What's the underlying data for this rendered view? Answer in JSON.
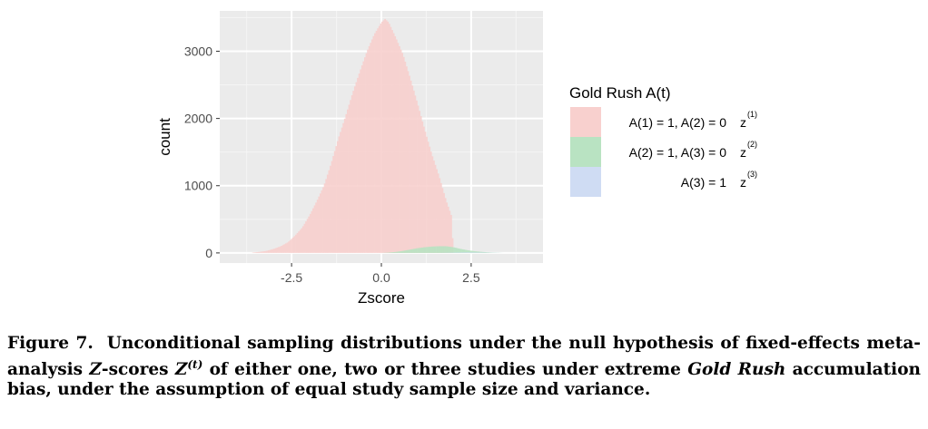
{
  "chart_data": {
    "type": "histogram",
    "title": "",
    "xlabel": "Zscore",
    "ylabel": "count",
    "xlim": [
      -4.5,
      4.5
    ],
    "ylim": [
      -150,
      3600
    ],
    "x_ticks": [
      -2.5,
      0.0,
      2.5
    ],
    "x_tick_labels": [
      "-2.5",
      "0.0",
      "2.5"
    ],
    "y_ticks": [
      0,
      1000,
      2000,
      3000
    ],
    "y_tick_labels": [
      "0",
      "1000",
      "2000",
      "3000"
    ],
    "grid": true,
    "legend": {
      "title": "Gold Rush A(t)",
      "placement": "right",
      "entries": [
        {
          "label": "A(1) = 1, A(2) = 0",
          "sup_base": "z",
          "sup": "(1)",
          "color": "#f8d0ce"
        },
        {
          "label": "A(2) = 1, A(3) = 0",
          "sup_base": "z",
          "sup": "(2)",
          "color": "#b9e3c2"
        },
        {
          "label": "A(3) = 1",
          "sup_base": "z",
          "sup": "(3)",
          "color": "#cfdcf3"
        }
      ]
    },
    "series": [
      {
        "name": "A(1) = 1, A(2) = 0",
        "color": "#f8d0ce",
        "points": [
          [
            -3.6,
            5
          ],
          [
            -3.4,
            15
          ],
          [
            -3.2,
            30
          ],
          [
            -3.0,
            60
          ],
          [
            -2.8,
            100
          ],
          [
            -2.6,
            160
          ],
          [
            -2.4,
            260
          ],
          [
            -2.2,
            380
          ],
          [
            -2.0,
            560
          ],
          [
            -1.8,
            770
          ],
          [
            -1.6,
            1000
          ],
          [
            -1.4,
            1330
          ],
          [
            -1.2,
            1700
          ],
          [
            -1.0,
            2030
          ],
          [
            -0.8,
            2380
          ],
          [
            -0.6,
            2700
          ],
          [
            -0.4,
            3000
          ],
          [
            -0.2,
            3250
          ],
          [
            0.0,
            3430
          ],
          [
            0.1,
            3480
          ],
          [
            0.2,
            3430
          ],
          [
            0.4,
            3200
          ],
          [
            0.6,
            2950
          ],
          [
            0.8,
            2600
          ],
          [
            1.0,
            2230
          ],
          [
            1.2,
            1840
          ],
          [
            1.4,
            1470
          ],
          [
            1.6,
            1150
          ],
          [
            1.8,
            780
          ],
          [
            1.95,
            550
          ],
          [
            2.0,
            0
          ]
        ]
      },
      {
        "name": "A(2) = 1, A(3) = 0",
        "color": "#b9e3c2",
        "points": [
          [
            0.0,
            0
          ],
          [
            0.2,
            5
          ],
          [
            0.4,
            15
          ],
          [
            0.6,
            30
          ],
          [
            0.8,
            50
          ],
          [
            1.0,
            70
          ],
          [
            1.2,
            85
          ],
          [
            1.4,
            95
          ],
          [
            1.6,
            100
          ],
          [
            1.8,
            100
          ],
          [
            2.0,
            85
          ],
          [
            2.2,
            60
          ],
          [
            2.4,
            40
          ],
          [
            2.6,
            25
          ],
          [
            2.8,
            15
          ],
          [
            3.0,
            8
          ],
          [
            3.2,
            3
          ],
          [
            3.4,
            0
          ]
        ]
      },
      {
        "name": "A(3) = 1",
        "color": "#cfdcf3",
        "points": [
          [
            1.6,
            0
          ],
          [
            2.0,
            4
          ],
          [
            2.4,
            8
          ],
          [
            2.8,
            5
          ],
          [
            3.2,
            2
          ],
          [
            3.4,
            0
          ]
        ]
      }
    ]
  },
  "caption": {
    "lead": "Figure 7.",
    "text_1": "Unconditional sampling distributions under the null hypothesis of fixed-effects meta- analysis",
    "z_italic": "Z",
    "text_2": "-scores",
    "Z_sym": "Z",
    "Z_sup": "(t)",
    "text_3": "of either one, two or three studies under extreme",
    "gold_rush": "Gold Rush",
    "text_4": "accumulation bias, under the assumption of equal study sample size and variance."
  }
}
